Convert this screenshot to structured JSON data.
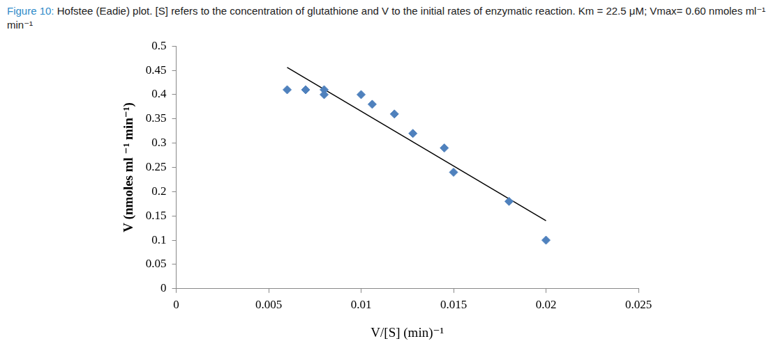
{
  "chart_data": {
    "type": "scatter",
    "title": "Figure 10:",
    "subtitle": "Hofstee (Eadie) plot. [S] refers to the concentration of glutathione and V to the initial rates of enzymatic reaction. Km = 22.5 μM; Vmax= 0.60 nmoles ml⁻¹ min⁻¹",
    "x_label": "V/[S] (min)⁻¹",
    "y_label": "V (nmoles ml ⁻¹ min⁻¹)",
    "series": [
      {
        "type": "scatter",
        "color": "#4f81bd",
        "marker": "diamond",
        "x": [
          0.006,
          0.007,
          0.008,
          0.008,
          0.01,
          0.0106,
          0.0118,
          0.0128,
          0.0145,
          0.015,
          0.018,
          0.02
        ],
        "values": [
          0.41,
          0.41,
          0.41,
          0.4,
          0.4,
          0.38,
          0.36,
          0.32,
          0.29,
          0.24,
          0.18,
          0.1
        ]
      },
      {
        "type": "line",
        "color": "#000000",
        "marker": "none",
        "line_style": "solid",
        "x": [
          0.006,
          0.02
        ],
        "values": [
          0.456,
          0.14
        ]
      }
    ],
    "xlim": [
      0,
      0.025
    ],
    "xticks": [
      0,
      0.005,
      0.01,
      0.015,
      0.02,
      0.025
    ],
    "ylim": [
      0,
      0.5
    ],
    "yticks": [
      0,
      0.05,
      0.1,
      0.15,
      0.2,
      0.25,
      0.3,
      0.35,
      0.4,
      0.45,
      0.5
    ],
    "grid": false
  }
}
